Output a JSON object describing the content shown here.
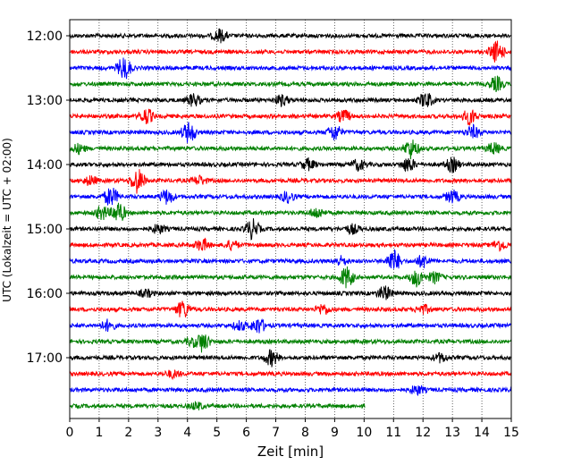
{
  "chart_data": {
    "type": "line",
    "title": "",
    "xlabel": "Zeit  [min]",
    "ylabel": "UTC (Lokalzeit = UTC + 02:00)",
    "xlim": [
      0,
      15
    ],
    "x_ticks": [
      "0",
      "1",
      "2",
      "3",
      "4",
      "5",
      "6",
      "7",
      "8",
      "9",
      "10",
      "11",
      "12",
      "13",
      "14",
      "15"
    ],
    "y_tick_labels": [
      "12:00",
      "13:00",
      "14:00",
      "15:00",
      "16:00",
      "17:00"
    ],
    "y_tick_rows": [
      0,
      4,
      8,
      12,
      16,
      20
    ],
    "vertical_grid": "dotted",
    "color_cycle": [
      "#000000",
      "#ff0000",
      "#0000ff",
      "#008000"
    ],
    "trace_interval_minutes": 15,
    "traces": [
      {
        "start": "12:00",
        "end_min": 15,
        "events": [
          [
            5.1,
            7
          ]
        ]
      },
      {
        "start": "12:15",
        "end_min": 15,
        "events": [
          [
            14.5,
            12
          ]
        ]
      },
      {
        "start": "12:30",
        "end_min": 15,
        "events": [
          [
            1.85,
            13
          ]
        ]
      },
      {
        "start": "12:45",
        "end_min": 15,
        "events": [
          [
            14.5,
            8
          ]
        ]
      },
      {
        "start": "13:00",
        "end_min": 15,
        "events": [
          [
            4.2,
            7
          ],
          [
            7.2,
            6
          ],
          [
            12.1,
            9
          ]
        ]
      },
      {
        "start": "13:15",
        "end_min": 15,
        "events": [
          [
            2.6,
            9
          ],
          [
            9.3,
            7
          ],
          [
            13.6,
            9
          ]
        ]
      },
      {
        "start": "13:30",
        "end_min": 15,
        "events": [
          [
            4.05,
            12
          ],
          [
            9.0,
            9
          ],
          [
            13.7,
            7
          ]
        ]
      },
      {
        "start": "13:45",
        "end_min": 15,
        "events": [
          [
            0.3,
            5
          ],
          [
            11.6,
            11
          ],
          [
            14.4,
            6
          ]
        ]
      },
      {
        "start": "14:00",
        "end_min": 15,
        "events": [
          [
            8.1,
            6
          ],
          [
            9.8,
            6
          ],
          [
            11.5,
            8
          ],
          [
            13.0,
            8
          ]
        ]
      },
      {
        "start": "14:15",
        "end_min": 15,
        "events": [
          [
            0.7,
            5
          ],
          [
            2.3,
            14
          ],
          [
            4.4,
            5
          ]
        ]
      },
      {
        "start": "14:30",
        "end_min": 15,
        "events": [
          [
            1.4,
            11
          ],
          [
            3.3,
            8
          ],
          [
            7.4,
            6
          ],
          [
            13.0,
            7
          ]
        ]
      },
      {
        "start": "14:45",
        "end_min": 15,
        "events": [
          [
            1.1,
            8
          ],
          [
            1.65,
            12
          ],
          [
            8.4,
            6
          ]
        ]
      },
      {
        "start": "15:00",
        "end_min": 15,
        "events": [
          [
            3.0,
            5
          ],
          [
            6.2,
            11
          ],
          [
            9.6,
            5
          ]
        ]
      },
      {
        "start": "15:15",
        "end_min": 15,
        "events": [
          [
            4.5,
            7
          ],
          [
            5.5,
            5
          ],
          [
            14.6,
            6
          ]
        ]
      },
      {
        "start": "15:30",
        "end_min": 15,
        "events": [
          [
            9.2,
            5
          ],
          [
            11.0,
            13
          ],
          [
            12.0,
            7
          ]
        ]
      },
      {
        "start": "15:45",
        "end_min": 15,
        "events": [
          [
            9.4,
            12
          ],
          [
            11.8,
            10
          ],
          [
            12.4,
            6
          ]
        ]
      },
      {
        "start": "16:00",
        "end_min": 15,
        "events": [
          [
            10.7,
            8
          ],
          [
            2.6,
            4
          ]
        ]
      },
      {
        "start": "16:15",
        "end_min": 15,
        "events": [
          [
            3.85,
            10
          ],
          [
            8.6,
            6
          ],
          [
            12.0,
            5
          ]
        ]
      },
      {
        "start": "16:30",
        "end_min": 15,
        "events": [
          [
            1.3,
            6
          ],
          [
            6.4,
            9
          ],
          [
            5.8,
            5
          ]
        ]
      },
      {
        "start": "16:45",
        "end_min": 15,
        "events": [
          [
            4.5,
            11
          ],
          [
            4.2,
            5
          ]
        ]
      },
      {
        "start": "17:00",
        "end_min": 15,
        "events": [
          [
            6.85,
            9
          ],
          [
            12.6,
            5
          ]
        ]
      },
      {
        "start": "17:15",
        "end_min": 15,
        "events": [
          [
            3.5,
            4
          ]
        ]
      },
      {
        "start": "17:30",
        "end_min": 15,
        "events": [
          [
            11.8,
            5
          ]
        ]
      },
      {
        "start": "17:45",
        "end_min": 10.05,
        "events": [
          [
            4.3,
            4
          ]
        ]
      }
    ]
  }
}
